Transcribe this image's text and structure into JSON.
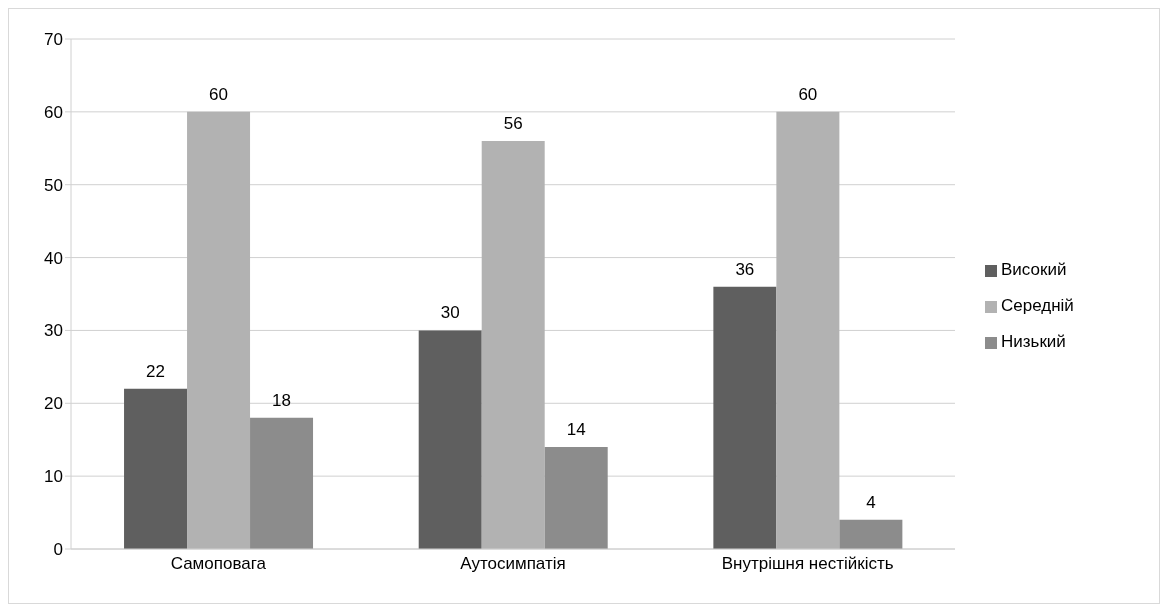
{
  "chart_data": {
    "type": "bar",
    "categories": [
      "Самоповага",
      "Аутосимпатія",
      "Внутрішня нестійкість"
    ],
    "series": [
      {
        "name": "Високий",
        "color": "#5f5f5f",
        "values": [
          22,
          30,
          36
        ]
      },
      {
        "name": "Середній",
        "color": "#b2b2b2",
        "values": [
          60,
          56,
          60
        ]
      },
      {
        "name": "Низький",
        "color": "#8c8c8c",
        "values": [
          18,
          14,
          4
        ]
      }
    ],
    "ylim": [
      0,
      70
    ],
    "yticks": [
      0,
      10,
      20,
      30,
      40,
      50,
      60,
      70
    ],
    "grid": "y",
    "legend": "right",
    "data_labels": true
  }
}
